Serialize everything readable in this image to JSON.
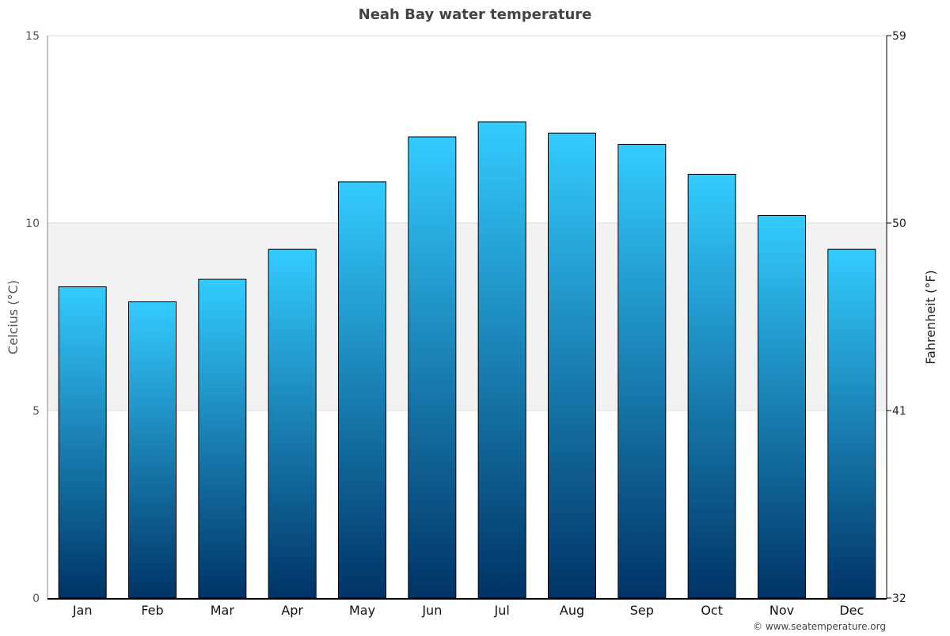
{
  "chart_data": {
    "type": "bar",
    "title": "Neah Bay water temperature",
    "categories": [
      "Jan",
      "Feb",
      "Mar",
      "Apr",
      "May",
      "Jun",
      "Jul",
      "Aug",
      "Sep",
      "Oct",
      "Nov",
      "Dec"
    ],
    "values": [
      8.3,
      7.9,
      8.5,
      9.3,
      11.1,
      12.3,
      12.7,
      12.4,
      12.1,
      11.3,
      10.2,
      9.3
    ],
    "ylabel": "Celcius (°C)",
    "ylabel_right": "Fahrenheit (°F)",
    "ylim": [
      0,
      15
    ],
    "yticks": [
      "0",
      "5",
      "10",
      "15"
    ],
    "yticks_right": [
      "32",
      "41",
      "50",
      "59"
    ],
    "grid": true,
    "highlight_band": [
      5,
      10
    ],
    "colors": {
      "bar_top": "#33ccff",
      "bar_bottom": "#003366",
      "band": "#f2f2f2"
    }
  },
  "footer": {
    "credit": "© www.seatemperature.org"
  }
}
